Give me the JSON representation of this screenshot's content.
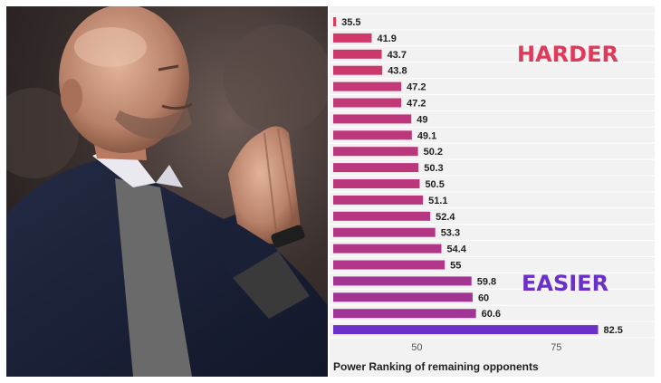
{
  "photo": {
    "alt": "Coach with hands pressed together on touchline"
  },
  "chart_data": {
    "type": "bar",
    "orientation": "horizontal",
    "values": [
      35.5,
      41.9,
      43.7,
      43.8,
      47.2,
      47.2,
      49,
      49.1,
      50.2,
      50.3,
      50.5,
      51.1,
      52.4,
      53.3,
      54.4,
      55,
      59.8,
      60,
      60.6,
      82.5
    ],
    "value_labels": [
      "35.5",
      "41.9",
      "43.7",
      "43.8",
      "47.2",
      "47.2",
      "49",
      "49.1",
      "50.2",
      "50.3",
      "50.5",
      "51.1",
      "52.4",
      "53.3",
      "54.4",
      "55",
      "59.8",
      "60",
      "60.6",
      "82.5"
    ],
    "xlim": [
      35,
      92
    ],
    "xticks": [
      50,
      75
    ],
    "xtick_labels": [
      "50",
      "75"
    ],
    "xlabel": "Power Ranking of remaining opponents",
    "annotations": {
      "top": "HARDER",
      "bottom": "EASIER"
    },
    "colors": {
      "harder": "#e03a5b",
      "easier": "#6a30c8",
      "background": "#f2f2f2",
      "grid": "#ffffff"
    }
  }
}
